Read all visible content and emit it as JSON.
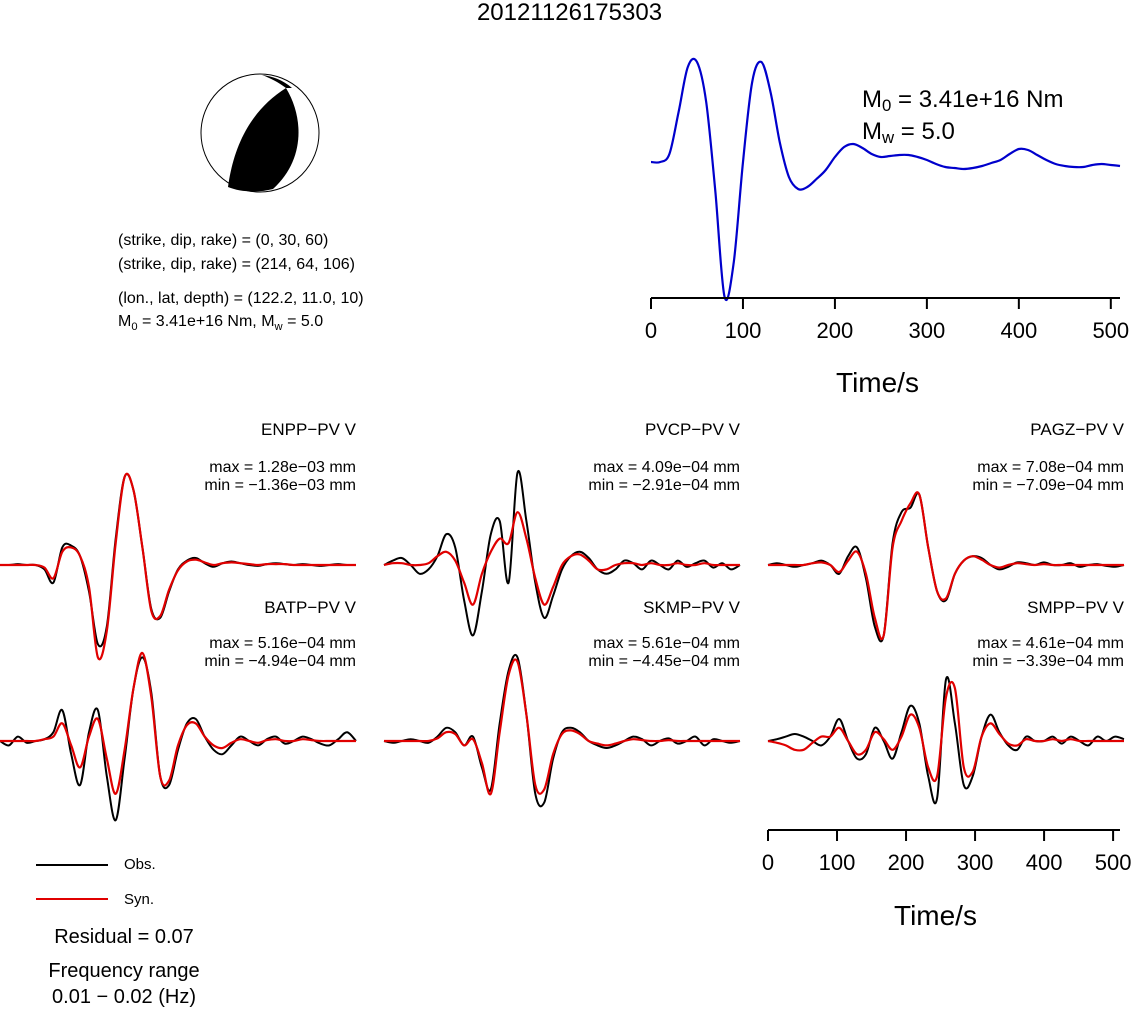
{
  "title": "20121126175303",
  "focal": {
    "plane1": "(strike, dip, rake) = (0, 30, 60)",
    "plane2": "(strike, dip, rake) = (214, 64, 106)",
    "location": "(lon., lat, depth) = (122.2, 11.0, 10)",
    "moment_prefix": "M",
    "moment_sub": "0",
    "moment_value": " = 3.41e+16 Nm, M",
    "mw_sub": "w",
    "mw_value": " = 5.0"
  },
  "stf": {
    "m0_prefix": "M",
    "m0_sub": "0",
    "m0_value": " = 3.41e+16 Nm",
    "mw_prefix": "M",
    "mw_sub": "w",
    "mw_value": " = 5.0"
  },
  "legend": {
    "obs": "Obs.",
    "syn": "Syn.",
    "obs_color": "#000000",
    "syn_color": "#e00000"
  },
  "residual": "Residual = 0.07",
  "freq_label": "Frequency range",
  "freq_value": "0.01 − 0.02 (Hz)",
  "colors": {
    "stf": "#0000cc",
    "obs": "#000000",
    "syn": "#e00000",
    "beach_fill": "#000000"
  },
  "chart_data": [
    {
      "type": "line",
      "name": "source-time-function",
      "xlabel": "Time/s",
      "xlim": [
        0,
        510
      ],
      "ylim": [
        -1.4,
        1.1
      ],
      "xticks": [
        0,
        100,
        200,
        300,
        400,
        500
      ],
      "x": [
        0,
        10,
        20,
        30,
        40,
        50,
        60,
        70,
        80,
        90,
        100,
        110,
        120,
        130,
        140,
        150,
        160,
        170,
        180,
        190,
        200,
        210,
        220,
        230,
        240,
        250,
        260,
        270,
        280,
        290,
        300,
        310,
        320,
        330,
        340,
        350,
        360,
        370,
        380,
        390,
        400,
        410,
        420,
        430,
        440,
        450,
        460,
        470,
        480,
        490,
        500,
        510
      ],
      "series": [
        {
          "values": [
            0.0,
            0.0,
            0.08,
            0.5,
            0.95,
            1.0,
            0.6,
            -0.3,
            -1.35,
            -1.0,
            0.0,
            0.8,
            1.0,
            0.7,
            0.2,
            -0.15,
            -0.27,
            -0.25,
            -0.17,
            -0.08,
            0.05,
            0.15,
            0.18,
            0.14,
            0.08,
            0.05,
            0.06,
            0.07,
            0.07,
            0.05,
            0.02,
            -0.02,
            -0.05,
            -0.06,
            -0.07,
            -0.06,
            -0.04,
            -0.01,
            0.02,
            0.08,
            0.13,
            0.12,
            0.07,
            0.02,
            -0.02,
            -0.04,
            -0.05,
            -0.05,
            -0.03,
            -0.02,
            -0.03,
            -0.04
          ]
        }
      ]
    },
    {
      "type": "line",
      "name": "waveform-fits",
      "xlabel": "Time/s",
      "xlim": [
        0,
        510
      ],
      "xticks": [
        0,
        100,
        200,
        300,
        400,
        500
      ],
      "panels": [
        {
          "station": "ENPP−PV V",
          "max": "max = 1.28e−03 mm",
          "min": "min = −1.36e−03 mm",
          "obs": [
            0.0,
            0.0,
            0.01,
            0.0,
            0.0,
            -0.05,
            -0.2,
            0.2,
            0.22,
            0.1,
            -0.3,
            -0.9,
            -0.7,
            0.3,
            1.0,
            0.85,
            0.2,
            -0.5,
            -0.6,
            -0.3,
            -0.05,
            0.05,
            0.08,
            0.02,
            -0.02,
            0.02,
            0.04,
            0.02,
            0.0,
            -0.01,
            0.01,
            0.02,
            0.01,
            0.0,
            0.01,
            0.0,
            -0.01,
            0.0,
            0.01,
            0.0,
            0.0
          ],
          "syn": [
            0.0,
            0.0,
            0.0,
            0.0,
            0.0,
            -0.03,
            -0.15,
            0.15,
            0.2,
            0.1,
            -0.25,
            -1.05,
            -0.75,
            0.25,
            1.0,
            0.85,
            0.2,
            -0.52,
            -0.58,
            -0.28,
            -0.06,
            0.04,
            0.06,
            0.03,
            0.0,
            0.02,
            0.03,
            0.02,
            0.01,
            0.0,
            0.01,
            0.01,
            0.01,
            0.0,
            0.0,
            0.0,
            0.0,
            0.0,
            0.0,
            0.0,
            0.0
          ]
        },
        {
          "station": "PVCP−PV V",
          "max": "max = 4.09e−04 mm",
          "min": "min = −2.91e−04 mm",
          "obs": [
            0.0,
            0.05,
            0.08,
            0.0,
            -0.1,
            -0.05,
            0.1,
            0.35,
            0.2,
            -0.4,
            -0.8,
            -0.3,
            0.35,
            0.5,
            -0.2,
            1.05,
            0.5,
            -0.2,
            -0.6,
            -0.35,
            -0.05,
            0.1,
            0.15,
            0.08,
            -0.05,
            -0.1,
            -0.05,
            0.05,
            0.02,
            -0.05,
            0.05,
            0.0,
            -0.05,
            0.05,
            -0.02,
            0.02,
            0.05,
            -0.03,
            0.02,
            -0.05,
            0.0
          ],
          "syn": [
            0.0,
            0.02,
            0.02,
            0.0,
            0.0,
            0.02,
            0.1,
            0.15,
            0.05,
            -0.2,
            -0.45,
            -0.1,
            0.15,
            0.3,
            0.25,
            0.6,
            0.3,
            -0.15,
            -0.45,
            -0.25,
            0.0,
            0.1,
            0.12,
            0.05,
            -0.05,
            -0.05,
            0.0,
            0.02,
            0.02,
            0.0,
            0.02,
            0.0,
            0.0,
            0.02,
            0.0,
            0.0,
            0.02,
            0.0,
            0.0,
            0.0,
            0.0
          ]
        },
        {
          "station": "PAGZ−PV V",
          "max": "max = 7.08e−04 mm",
          "min": "min = −7.09e−04 mm",
          "obs": [
            0.0,
            0.02,
            0.0,
            -0.02,
            0.0,
            0.02,
            0.05,
            0.0,
            -0.1,
            0.1,
            0.2,
            -0.15,
            -0.7,
            -0.8,
            0.25,
            0.6,
            0.65,
            0.8,
            0.2,
            -0.3,
            -0.4,
            -0.1,
            0.05,
            0.1,
            0.08,
            0.0,
            -0.05,
            -0.02,
            0.03,
            0.02,
            0.0,
            0.03,
            0.0,
            0.0,
            0.02,
            -0.02,
            0.0,
            0.01,
            -0.01,
            -0.02,
            0.0
          ],
          "syn": [
            0.0,
            0.0,
            0.0,
            0.0,
            0.0,
            0.02,
            0.03,
            0.0,
            -0.08,
            0.05,
            0.15,
            -0.1,
            -0.6,
            -0.8,
            0.2,
            0.5,
            0.7,
            0.8,
            0.2,
            -0.3,
            -0.38,
            -0.1,
            0.05,
            0.1,
            0.06,
            0.0,
            -0.03,
            0.0,
            0.02,
            0.01,
            0.0,
            0.01,
            0.0,
            0.0,
            0.0,
            0.0,
            0.0,
            0.0,
            0.0,
            0.0,
            0.0
          ]
        },
        {
          "station": "BATP−PV V",
          "max": "max = 5.16e−04 mm",
          "min": "min = −4.94e−04 mm",
          "obs": [
            0.0,
            -0.05,
            0.05,
            -0.02,
            0.0,
            0.02,
            0.1,
            0.35,
            -0.15,
            -0.5,
            0.1,
            0.35,
            -0.4,
            -0.9,
            -0.2,
            0.6,
            0.95,
            0.55,
            -0.4,
            -0.5,
            -0.1,
            0.2,
            0.25,
            0.05,
            -0.1,
            -0.15,
            -0.05,
            0.05,
            0.0,
            -0.05,
            0.02,
            0.05,
            -0.03,
            0.0,
            0.05,
            0.02,
            -0.03,
            -0.05,
            0.02,
            0.1,
            0.0
          ],
          "syn": [
            0.0,
            0.0,
            0.0,
            0.0,
            0.0,
            0.02,
            0.05,
            0.2,
            -0.05,
            -0.3,
            0.05,
            0.25,
            -0.2,
            -0.6,
            -0.1,
            0.6,
            1.0,
            0.5,
            -0.4,
            -0.45,
            -0.05,
            0.18,
            0.2,
            0.05,
            -0.05,
            -0.08,
            -0.02,
            0.02,
            0.0,
            -0.02,
            0.01,
            0.02,
            0.0,
            0.0,
            0.02,
            0.01,
            0.0,
            0.0,
            0.0,
            0.0,
            0.0
          ]
        },
        {
          "station": "SKMP−PV V",
          "max": "max = 5.61e−04 mm",
          "min": "min = −4.45e−04 mm",
          "obs": [
            0.0,
            -0.02,
            0.0,
            0.02,
            0.0,
            -0.02,
            0.05,
            0.15,
            0.1,
            -0.05,
            0.05,
            -0.3,
            -0.55,
            0.2,
            0.8,
            0.95,
            0.3,
            -0.6,
            -0.7,
            -0.2,
            0.1,
            0.15,
            0.1,
            0.0,
            -0.05,
            -0.08,
            -0.05,
            0.0,
            0.05,
            0.02,
            -0.05,
            0.0,
            0.03,
            -0.03,
            0.0,
            0.05,
            -0.05,
            0.02,
            0.0,
            -0.02,
            0.0
          ],
          "syn": [
            0.0,
            0.0,
            0.0,
            0.0,
            0.0,
            0.0,
            0.03,
            0.1,
            0.08,
            -0.05,
            0.02,
            -0.25,
            -0.6,
            0.1,
            0.75,
            0.9,
            0.3,
            -0.5,
            -0.55,
            -0.15,
            0.08,
            0.12,
            0.08,
            0.0,
            -0.03,
            -0.05,
            -0.03,
            0.0,
            0.02,
            0.01,
            0.0,
            0.0,
            0.01,
            0.0,
            0.0,
            0.0,
            0.0,
            0.0,
            0.0,
            0.0,
            0.0
          ]
        },
        {
          "station": "SMPP−PV V",
          "max": "max = 4.61e−04 mm",
          "min": "min = −3.39e−04 mm",
          "obs": [
            0.0,
            0.02,
            0.05,
            0.08,
            0.05,
            0.0,
            -0.05,
            0.05,
            0.25,
            0.0,
            -0.2,
            -0.15,
            0.15,
            0.0,
            -0.2,
            0.1,
            0.4,
            0.2,
            -0.4,
            -0.65,
            0.7,
            0.2,
            -0.5,
            -0.4,
            0.05,
            0.3,
            0.1,
            -0.05,
            -0.1,
            0.05,
            0.0,
            0.0,
            0.05,
            -0.03,
            0.05,
            0.0,
            -0.05,
            0.05,
            0.0,
            0.05,
            0.02
          ],
          "syn": [
            0.0,
            -0.02,
            -0.05,
            -0.1,
            -0.1,
            -0.02,
            0.05,
            0.05,
            0.15,
            0.0,
            -0.15,
            -0.1,
            0.1,
            0.02,
            -0.1,
            0.05,
            0.3,
            0.15,
            -0.3,
            -0.4,
            0.5,
            0.6,
            -0.3,
            -0.35,
            0.05,
            0.2,
            0.08,
            -0.03,
            -0.05,
            0.02,
            0.0,
            0.0,
            0.02,
            0.0,
            0.02,
            0.0,
            0.0,
            0.0,
            0.0,
            0.0,
            0.0
          ]
        }
      ]
    }
  ]
}
